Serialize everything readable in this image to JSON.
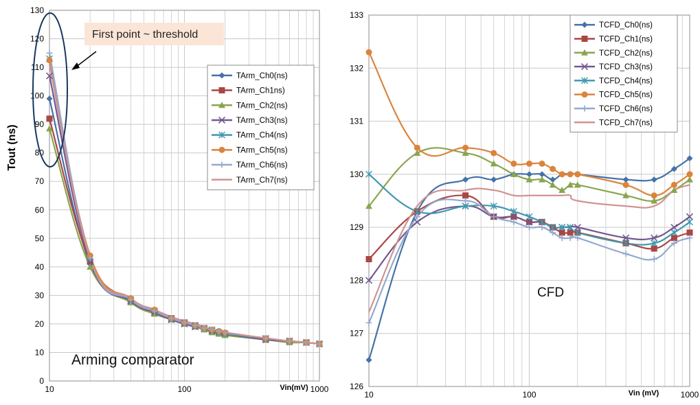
{
  "colors": {
    "ch0": "#4572A7",
    "ch1": "#AA4643",
    "ch2": "#89A54E",
    "ch3": "#71588F",
    "ch4": "#4198AF",
    "ch5": "#DB843D",
    "ch6": "#93A9CF",
    "ch7": "#D19392",
    "grid": "#c8c8c8",
    "annotation_fill": "#fbe5d6",
    "ellipse": "#17375E"
  },
  "chart_data": [
    {
      "type": "line",
      "xscale": "log",
      "xlim": [
        10,
        1000
      ],
      "ylim": [
        0,
        130
      ],
      "xlabel": "Vin(mV)",
      "ylabel": "Tout (ns)",
      "xticks": [
        "10",
        "100",
        "1000"
      ],
      "yticks": [
        "0",
        "10",
        "20",
        "30",
        "40",
        "50",
        "60",
        "70",
        "80",
        "90",
        "100",
        "110",
        "120",
        "130"
      ],
      "grid": true,
      "legend_position": "right",
      "annotations": {
        "threshold_note": "First point ~ threshold",
        "label": "Arming comparator"
      },
      "x": [
        10,
        20,
        40,
        60,
        80,
        100,
        120,
        140,
        160,
        180,
        200,
        400,
        600,
        800,
        1000
      ],
      "series": [
        {
          "name": "TArm_Ch0(ns)",
          "marker": "diamond",
          "color": "#4572A7",
          "values": [
            99,
            41,
            28,
            24,
            21.5,
            20,
            19,
            18,
            17.5,
            17,
            16.5,
            14.5,
            14,
            13.5,
            13
          ]
        },
        {
          "name": "TArm_Ch1ns)",
          "marker": "square",
          "color": "#AA4643",
          "values": [
            92,
            42,
            28.5,
            24.5,
            22,
            20.5,
            19.5,
            18.5,
            17.5,
            17,
            16.5,
            14.5,
            14,
            13.5,
            13
          ]
        },
        {
          "name": "TArm_Ch2(ns)",
          "marker": "triangle",
          "color": "#89A54E",
          "values": [
            88.5,
            40,
            27.5,
            23.5,
            21.5,
            20,
            19,
            18,
            17,
            16.5,
            16,
            14.5,
            13.5,
            13.5,
            13
          ]
        },
        {
          "name": "TArm_Ch3(ns)",
          "marker": "x",
          "color": "#71588F",
          "values": [
            107,
            42,
            28,
            24,
            21.5,
            20,
            19,
            18.5,
            17.5,
            17,
            16.5,
            14.5,
            14,
            13.5,
            13
          ]
        },
        {
          "name": "TArm_Ch4(ns)",
          "marker": "star",
          "color": "#4198AF",
          "values": [
            113,
            43,
            28.5,
            24.5,
            22,
            20.5,
            19.5,
            18.5,
            18,
            17,
            16.5,
            15,
            14,
            13.5,
            13
          ]
        },
        {
          "name": "TArm_Ch5(ns)",
          "marker": "circle",
          "color": "#DB843D",
          "values": [
            112.5,
            44,
            29,
            25,
            22,
            20.5,
            19.5,
            18.5,
            18,
            17.5,
            17,
            15,
            14,
            13.5,
            13
          ]
        },
        {
          "name": "TArm_Ch6(ns)",
          "marker": "plus",
          "color": "#93A9CF",
          "values": [
            115,
            43,
            28.5,
            24.5,
            22,
            20.5,
            19.5,
            18.5,
            18,
            17.5,
            17,
            15,
            14,
            13.5,
            13
          ]
        },
        {
          "name": "TArm_Ch7(ns)",
          "marker": "none",
          "color": "#D19392",
          "values": [
            111,
            43,
            29,
            25,
            22.5,
            21,
            20,
            19,
            18,
            17.5,
            17,
            15,
            14,
            13.5,
            13
          ]
        }
      ]
    },
    {
      "type": "line",
      "xscale": "log",
      "xlim": [
        10,
        1000
      ],
      "ylim": [
        126,
        133
      ],
      "xlabel": "Vin (mV)",
      "ylabel": "",
      "xticks": [
        "10",
        "100",
        "1000"
      ],
      "yticks": [
        "126",
        "127",
        "128",
        "129",
        "130",
        "131",
        "132",
        "133"
      ],
      "grid": true,
      "legend_position": "top-right",
      "annotations": {
        "label": "CFD"
      },
      "x": [
        10,
        20,
        40,
        60,
        80,
        100,
        120,
        140,
        160,
        180,
        200,
        400,
        600,
        800,
        1000
      ],
      "series": [
        {
          "name": "TCFD_Ch0(ns)",
          "marker": "diamond",
          "color": "#4572A7",
          "values": [
            126.5,
            129.3,
            129.9,
            129.9,
            130.0,
            130.0,
            130.0,
            129.9,
            130.0,
            130.0,
            130.0,
            129.9,
            129.9,
            130.1,
            130.3
          ]
        },
        {
          "name": "TCFD_Ch1(ns)",
          "marker": "square",
          "color": "#AA4643",
          "values": [
            128.4,
            129.3,
            129.6,
            129.2,
            129.2,
            129.1,
            129.1,
            129.0,
            128.9,
            128.9,
            128.9,
            128.7,
            128.6,
            128.8,
            128.9
          ]
        },
        {
          "name": "TCFD_Ch2(ns)",
          "marker": "triangle",
          "color": "#89A54E",
          "values": [
            129.4,
            130.4,
            130.4,
            130.2,
            130.0,
            129.9,
            129.9,
            129.8,
            129.7,
            129.8,
            129.8,
            129.6,
            129.5,
            129.7,
            129.9
          ]
        },
        {
          "name": "TCFD_Ch3(ns)",
          "marker": "x",
          "color": "#71588F",
          "values": [
            128.0,
            129.1,
            129.4,
            129.2,
            129.2,
            129.1,
            129.1,
            129.0,
            129.0,
            129.0,
            129.0,
            128.8,
            128.8,
            129.0,
            129.2
          ]
        },
        {
          "name": "TCFD_Ch4(ns)",
          "marker": "star",
          "color": "#4198AF",
          "values": [
            130.0,
            129.3,
            129.4,
            129.4,
            129.3,
            129.2,
            129.1,
            129.0,
            129.0,
            129.0,
            128.9,
            128.7,
            128.7,
            128.9,
            129.1
          ]
        },
        {
          "name": "TCFD_Ch5(ns)",
          "marker": "circle",
          "color": "#DB843D",
          "values": [
            132.3,
            130.5,
            130.5,
            130.4,
            130.2,
            130.2,
            130.2,
            130.1,
            130.0,
            130.0,
            130.0,
            129.8,
            129.6,
            129.8,
            130.0
          ]
        },
        {
          "name": "TCFD_Ch6(ns)",
          "marker": "plus",
          "color": "#93A9CF",
          "values": [
            127.2,
            129.2,
            129.5,
            129.2,
            129.1,
            129.0,
            129.0,
            128.9,
            128.8,
            128.8,
            128.8,
            128.5,
            128.4,
            128.7,
            128.8
          ]
        },
        {
          "name": "TCFD_Ch7(ns)",
          "marker": "none",
          "color": "#D19392",
          "values": [
            127.4,
            129.4,
            129.7,
            129.7,
            129.6,
            129.6,
            129.6,
            129.6,
            129.6,
            129.6,
            129.5,
            129.4,
            129.4,
            129.7,
            129.8
          ]
        }
      ]
    }
  ]
}
